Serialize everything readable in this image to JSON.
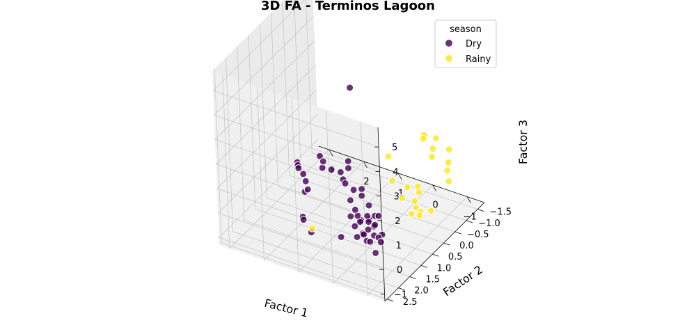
{
  "chart_data": {
    "type": "scatter",
    "title": "3D FA - Terminos Lagoon",
    "xlabel": "Factor 1",
    "ylabel": "Factor 2",
    "zlabel": "Factor 3",
    "xlim": [
      -1.5,
      3.3
    ],
    "ylim": [
      -1.8,
      2.6
    ],
    "zlim": [
      -1.3,
      5.8
    ],
    "x_ticks": [
      "3",
      "2",
      "1",
      "0",
      "−1"
    ],
    "y_ticks": [
      "−1.5",
      "−1.0",
      "−0.5",
      "0.0",
      "0.5",
      "1.0",
      "1.5",
      "2.0",
      "2.5"
    ],
    "z_ticks": [
      "−1",
      "0",
      "1",
      "2",
      "3",
      "4",
      "5"
    ],
    "grid": true,
    "legend": {
      "title": "season",
      "placement": "top-right"
    },
    "colors": {
      "Dry": "#440154",
      "Rainy": "#fde725"
    },
    "series": [
      {
        "name": "Dry",
        "points": [
          [
            2.5,
            0.3,
            0.35
          ],
          [
            2.45,
            0.35,
            0.3
          ],
          [
            2.4,
            0.4,
            0.25
          ],
          [
            2.2,
            0.5,
            0.2
          ],
          [
            2.1,
            0.55,
            0.0
          ],
          [
            2.0,
            0.75,
            -0.2
          ],
          [
            1.9,
            0.2,
            0.8
          ],
          [
            1.7,
            0.4,
            0.6
          ],
          [
            1.6,
            1.2,
            0.5
          ],
          [
            1.5,
            1.6,
            -0.2
          ],
          [
            1.45,
            1.65,
            -0.25
          ],
          [
            1.2,
            1.7,
            -0.6
          ],
          [
            1.6,
            0.5,
            1.0
          ],
          [
            1.3,
            0.6,
            0.9
          ],
          [
            1.1,
            0.5,
            0.8
          ],
          [
            1.0,
            0.55,
            0.6
          ],
          [
            0.9,
            0.45,
            1.3
          ],
          [
            0.8,
            0.6,
            1.2
          ],
          [
            0.7,
            0.9,
            0.9
          ],
          [
            0.6,
            0.7,
            0.5
          ],
          [
            0.5,
            0.5,
            0.4
          ],
          [
            0.3,
            0.8,
            0.5
          ],
          [
            0.1,
            0.8,
            0.2
          ],
          [
            0.8,
            0.4,
            4.3
          ],
          [
            -0.1,
            1.1,
            0.0
          ],
          [
            -0.2,
            1.0,
            0.1
          ],
          [
            -0.3,
            1.2,
            -0.1
          ],
          [
            0.0,
            1.3,
            0.1
          ],
          [
            0.1,
            1.2,
            -0.1
          ],
          [
            0.2,
            1.15,
            0.05
          ],
          [
            -0.1,
            1.4,
            -0.3
          ],
          [
            -0.2,
            1.5,
            -0.2
          ],
          [
            -0.3,
            1.45,
            0.0
          ],
          [
            -0.4,
            1.3,
            0.1
          ],
          [
            -0.5,
            1.5,
            -0.1
          ],
          [
            -0.15,
            1.25,
            0.3
          ],
          [
            -0.25,
            1.35,
            0.2
          ],
          [
            0.0,
            1.5,
            -0.4
          ],
          [
            -0.35,
            1.6,
            -0.3
          ],
          [
            -0.45,
            1.2,
            0.4
          ],
          [
            0.2,
            1.45,
            0.3
          ],
          [
            0.3,
            1.1,
            0.2
          ],
          [
            -0.6,
            1.3,
            -0.2
          ],
          [
            -0.7,
            1.6,
            0.0
          ],
          [
            -0.55,
            1.75,
            -0.1
          ],
          [
            -0.8,
            1.9,
            -0.3
          ],
          [
            -0.9,
            1.8,
            0.1
          ],
          [
            0.4,
            1.6,
            -0.5
          ],
          [
            0.5,
            1.0,
            0.4
          ],
          [
            -0.05,
            1.65,
            0.2
          ]
        ]
      },
      {
        "name": "Rainy",
        "points": [
          [
            1.1,
            1.8,
            -0.3
          ],
          [
            0.3,
            -0.4,
            1.0
          ],
          [
            -0.2,
            -1.2,
            1.4
          ],
          [
            -0.3,
            -1.1,
            1.5
          ],
          [
            -0.5,
            -1.3,
            1.3
          ],
          [
            -0.4,
            -0.9,
            1.6
          ],
          [
            -0.6,
            -1.0,
            1.2
          ],
          [
            -0.7,
            -0.8,
            1.1
          ],
          [
            -0.8,
            -1.4,
            0.9
          ],
          [
            -0.9,
            -1.2,
            0.6
          ],
          [
            -1.0,
            -1.0,
            0.5
          ],
          [
            -1.1,
            -0.9,
            0.2
          ],
          [
            -0.6,
            -0.3,
            0.3
          ],
          [
            -0.7,
            -0.2,
            0.2
          ],
          [
            -0.8,
            0.1,
            -0.1
          ],
          [
            -0.5,
            0.0,
            0.5
          ],
          [
            -0.9,
            0.3,
            0.4
          ],
          [
            -1.2,
            0.5,
            0.3
          ],
          [
            -1.0,
            0.6,
            0.2
          ],
          [
            -1.3,
            0.2,
            0.1
          ],
          [
            -0.4,
            0.1,
            0.1
          ],
          [
            -1.1,
            0.4,
            0.0
          ],
          [
            -0.2,
            0.2,
            0.8
          ]
        ]
      }
    ]
  }
}
